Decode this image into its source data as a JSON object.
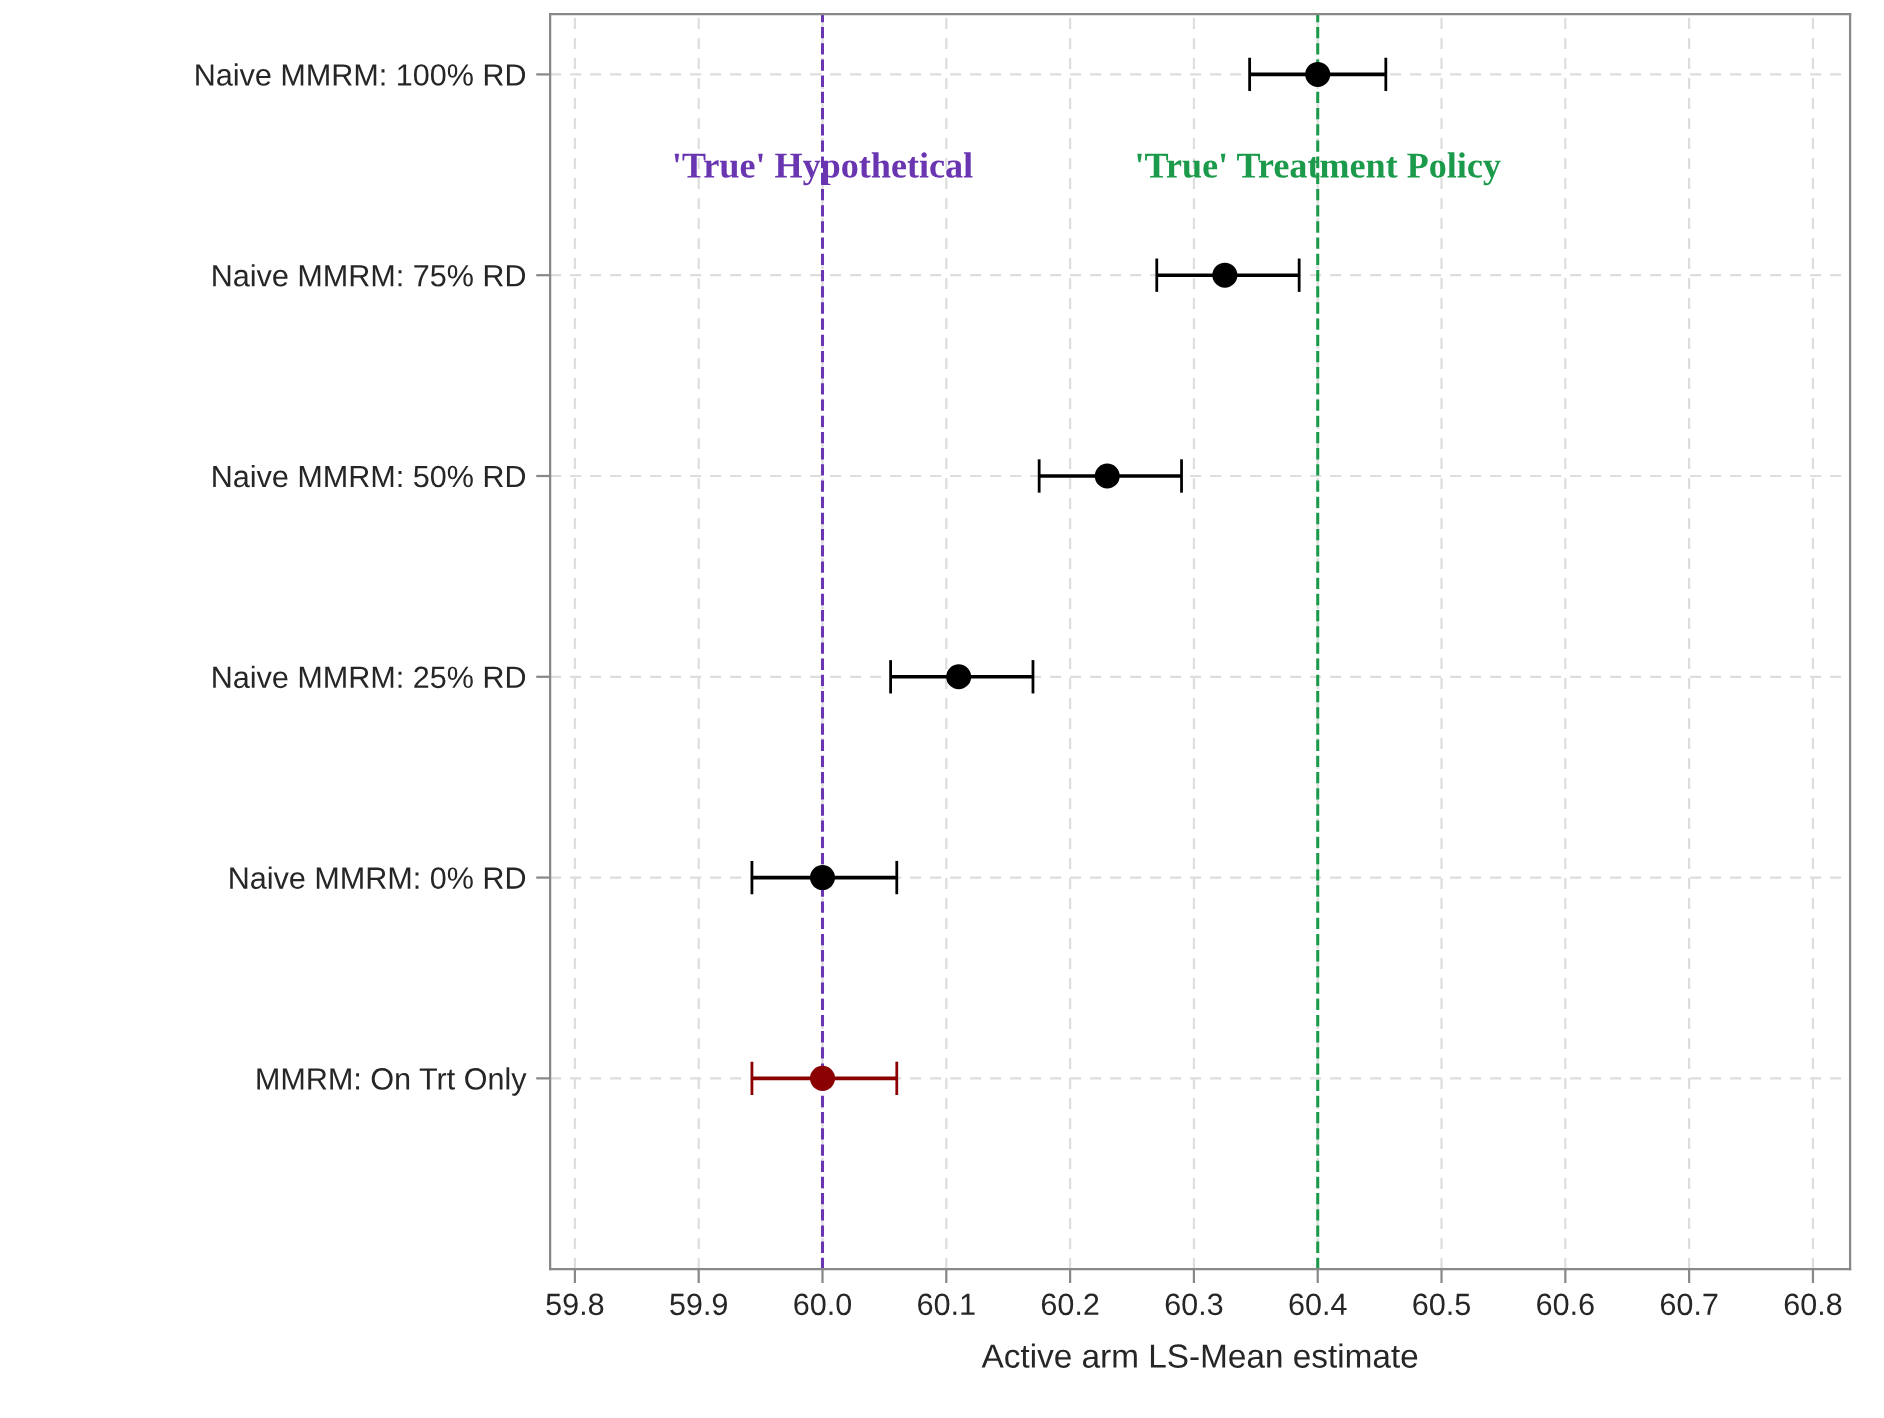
{
  "chart_data": {
    "type": "scatter",
    "orientation": "horizontal",
    "xlabel": "Active arm LS-Mean estimate",
    "categories": [
      "Naive MMRM: 100% RD",
      "Naive MMRM: 75% RD",
      "Naive MMRM: 50% RD",
      "Naive MMRM: 25% RD",
      "Naive MMRM: 0% RD",
      "MMRM: On Trt Only"
    ],
    "values": [
      60.4,
      60.325,
      60.23,
      60.11,
      60.0,
      60.0
    ],
    "errors": [
      [
        60.345,
        60.455
      ],
      [
        60.27,
        60.385
      ],
      [
        60.175,
        60.29
      ],
      [
        60.055,
        60.17
      ],
      [
        59.943,
        60.06
      ],
      [
        59.943,
        60.06
      ]
    ],
    "colors": [
      "#000000",
      "#000000",
      "#000000",
      "#000000",
      "#000000",
      "#8b0000"
    ],
    "xlim": [
      59.78,
      60.83
    ],
    "xticks": [
      59.8,
      59.9,
      {
        "value": 60.0,
        "label": "60.0"
      },
      60.1,
      60.2,
      60.3,
      60.4,
      60.5,
      60.6,
      60.7,
      60.8
    ],
    "ref_lines": [
      {
        "axis": "x",
        "value": 60.0,
        "label": "'True' Hypothetical",
        "color": "#6a35b0",
        "line_style": "dashed"
      },
      {
        "axis": "x",
        "value": 60.4,
        "label": "'True' Treatment Policy",
        "color": "#1a9a4a",
        "line_style": "dashed"
      }
    ],
    "grid": true,
    "marker": "circle"
  }
}
